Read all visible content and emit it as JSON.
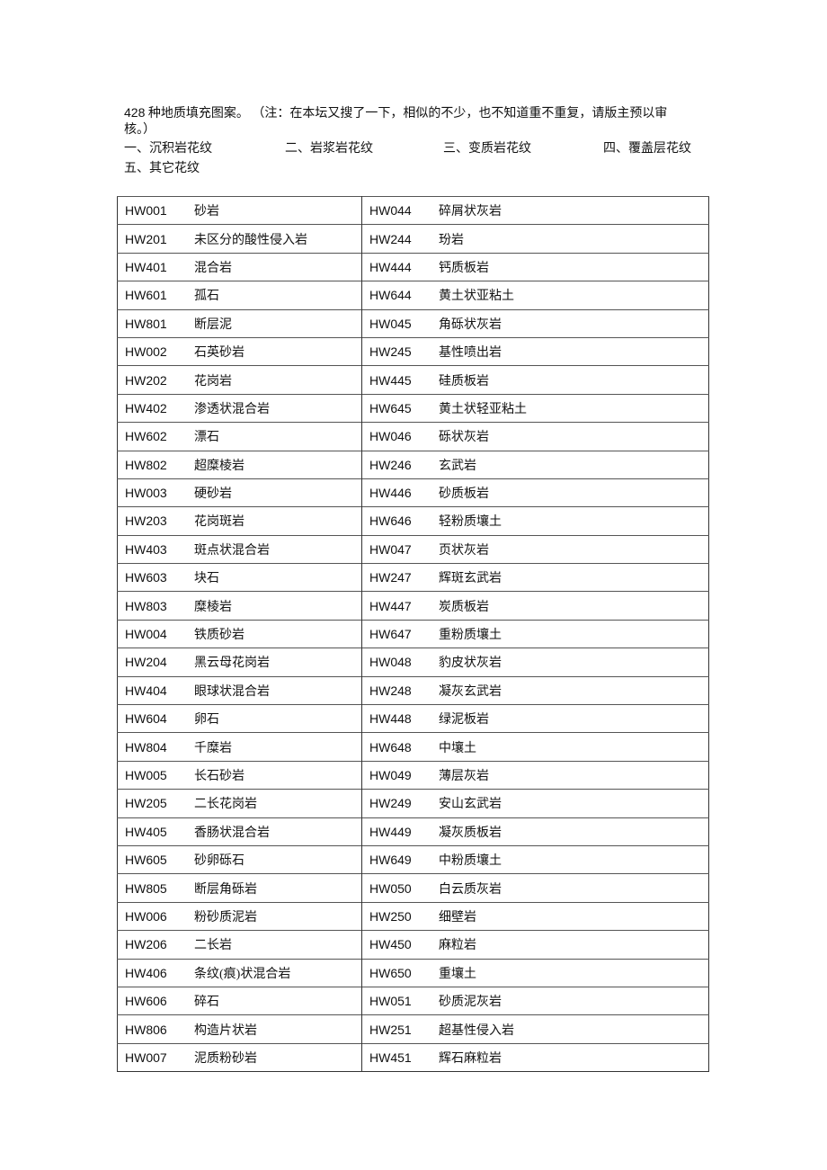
{
  "intro": {
    "count": "428",
    "text": " 种地质填充图案。 （注：在本坛又搜了一下，相似的不少，也不知道重不重复，请版主预以审核。）"
  },
  "categories": [
    "一、沉积岩花纹",
    "二、岩浆岩花纹",
    "三、变质岩花纹",
    "四、覆盖层花纹",
    "五、其它花纹"
  ],
  "rows": [
    [
      "HW001",
      "砂岩",
      "HW044",
      "碎屑状灰岩"
    ],
    [
      "HW201",
      "未区分的酸性侵入岩",
      "HW244",
      "玢岩"
    ],
    [
      "HW401",
      "混合岩",
      "HW444",
      "钙质板岩"
    ],
    [
      "HW601",
      "孤石",
      "HW644",
      "黄土状亚粘土"
    ],
    [
      "HW801",
      "断层泥",
      "HW045",
      "角砾状灰岩"
    ],
    [
      "HW002",
      "石英砂岩",
      "HW245",
      "基性喷出岩"
    ],
    [
      "HW202",
      "花岗岩",
      "HW445",
      "硅质板岩"
    ],
    [
      "HW402",
      "渗透状混合岩",
      "HW645",
      "黄土状轻亚粘土"
    ],
    [
      "HW602",
      "漂石",
      "HW046",
      "砾状灰岩"
    ],
    [
      "HW802",
      "超糜棱岩",
      "HW246",
      "玄武岩"
    ],
    [
      "HW003",
      "硬砂岩",
      "HW446",
      "砂质板岩"
    ],
    [
      "HW203",
      "花岗斑岩",
      "HW646",
      "轻粉质壤土"
    ],
    [
      "HW403",
      "斑点状混合岩",
      "HW047",
      "页状灰岩"
    ],
    [
      "HW603",
      "块石",
      "HW247",
      "辉斑玄武岩"
    ],
    [
      "HW803",
      "糜棱岩",
      "HW447",
      "炭质板岩"
    ],
    [
      "HW004",
      "铁质砂岩",
      "HW647",
      "重粉质壤土"
    ],
    [
      "HW204",
      "黑云母花岗岩",
      "HW048",
      "豹皮状灰岩"
    ],
    [
      "HW404",
      "眼球状混合岩",
      "HW248",
      "凝灰玄武岩"
    ],
    [
      "HW604",
      "卵石",
      "HW448",
      "绿泥板岩"
    ],
    [
      "HW804",
      "千糜岩",
      "HW648",
      "中壤土"
    ],
    [
      "HW005",
      "长石砂岩",
      "HW049",
      "薄层灰岩"
    ],
    [
      "HW205",
      "二长花岗岩",
      "HW249",
      "安山玄武岩"
    ],
    [
      "HW405",
      "香肠状混合岩",
      "HW449",
      "凝灰质板岩"
    ],
    [
      "HW605",
      "砂卵砾石",
      "HW649",
      "中粉质壤土"
    ],
    [
      "HW805",
      "断层角砾岩",
      "HW050",
      "白云质灰岩"
    ],
    [
      "HW006",
      "粉砂质泥岩",
      "HW250",
      "细壁岩"
    ],
    [
      "HW206",
      "二长岩",
      "HW450",
      "麻粒岩"
    ],
    [
      "HW406",
      "条纹(痕)状混合岩",
      "HW650",
      "重壤土"
    ],
    [
      "HW606",
      "碎石",
      "HW051",
      "砂质泥灰岩"
    ],
    [
      "HW806",
      "构造片状岩",
      "HW251",
      "超基性侵入岩"
    ],
    [
      "HW007",
      "泥质粉砂岩",
      "HW451",
      "辉石麻粒岩"
    ]
  ]
}
